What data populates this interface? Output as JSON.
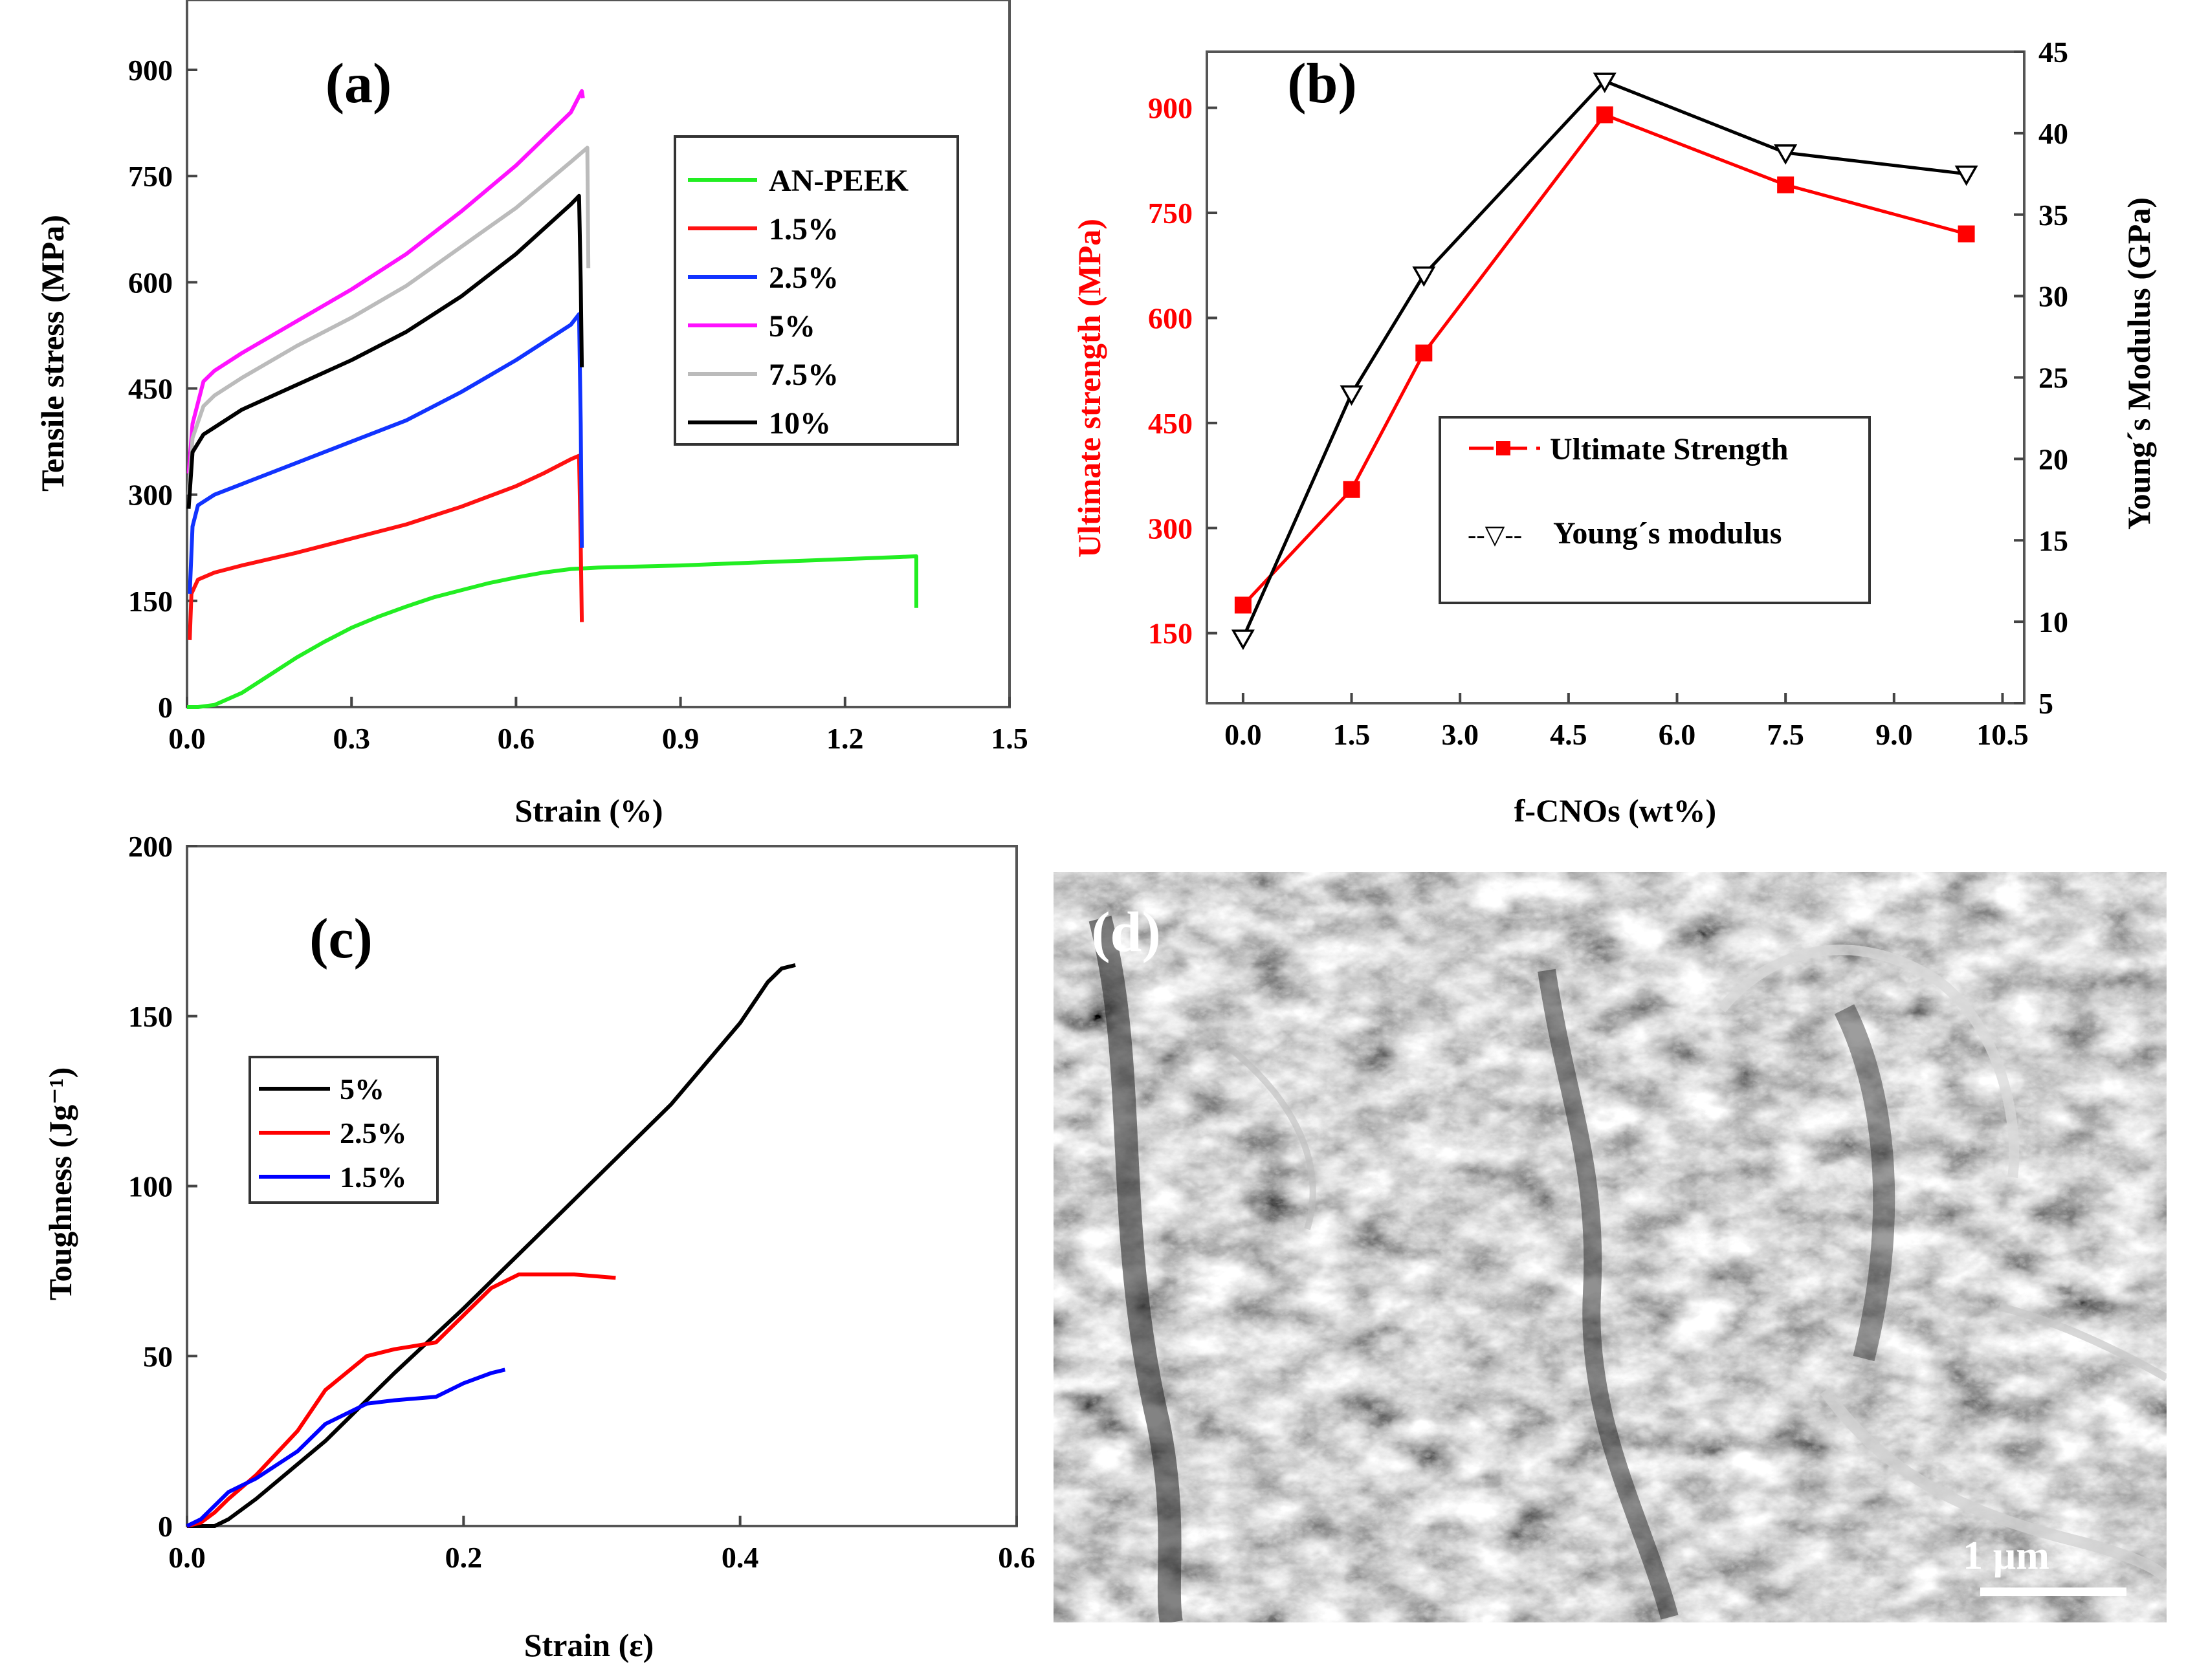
{
  "panels": {
    "a": {
      "label": "(a)"
    },
    "b": {
      "label": "(b)"
    },
    "c": {
      "label": "(c)"
    },
    "d": {
      "label": "(d)",
      "scale_bar": "1 µm"
    }
  },
  "chart_data": [
    {
      "id": "a",
      "type": "line",
      "xlabel": "Strain (%)",
      "ylabel": "Tensile stress (MPa)",
      "xlim": [
        0,
        1.5
      ],
      "ylim": [
        0,
        900
      ],
      "xticks": [
        "0.0",
        "0.3",
        "0.6",
        "0.9",
        "1.2",
        "1.5"
      ],
      "yticks": [
        "0",
        "150",
        "300",
        "450",
        "600",
        "750",
        "900"
      ],
      "legend_position": "top-right",
      "series": [
        {
          "name": "AN-PEEK",
          "color": "#22ee22",
          "points": [
            [
              0.0,
              0
            ],
            [
              0.02,
              0
            ],
            [
              0.05,
              3
            ],
            [
              0.1,
              20
            ],
            [
              0.15,
              45
            ],
            [
              0.2,
              70
            ],
            [
              0.25,
              92
            ],
            [
              0.3,
              112
            ],
            [
              0.35,
              128
            ],
            [
              0.4,
              142
            ],
            [
              0.45,
              155
            ],
            [
              0.5,
              165
            ],
            [
              0.55,
              175
            ],
            [
              0.6,
              183
            ],
            [
              0.65,
              190
            ],
            [
              0.7,
              195
            ],
            [
              0.75,
              197
            ],
            [
              0.8,
              198
            ],
            [
              0.9,
              200
            ],
            [
              1.0,
              203
            ],
            [
              1.1,
              206
            ],
            [
              1.2,
              209
            ],
            [
              1.3,
              212
            ],
            [
              1.33,
              213
            ],
            [
              1.33,
              140
            ]
          ]
        },
        {
          "name": "1.5%",
          "color": "#ff1111",
          "points": [
            [
              0.005,
              95
            ],
            [
              0.008,
              160
            ],
            [
              0.02,
              180
            ],
            [
              0.05,
              190
            ],
            [
              0.1,
              200
            ],
            [
              0.2,
              218
            ],
            [
              0.3,
              238
            ],
            [
              0.4,
              258
            ],
            [
              0.5,
              283
            ],
            [
              0.6,
              312
            ],
            [
              0.65,
              330
            ],
            [
              0.7,
              350
            ],
            [
              0.715,
              355
            ],
            [
              0.718,
              230
            ],
            [
              0.72,
              120
            ]
          ]
        },
        {
          "name": "2.5%",
          "color": "#1133ff",
          "points": [
            [
              0.005,
              160
            ],
            [
              0.01,
              255
            ],
            [
              0.02,
              285
            ],
            [
              0.05,
              300
            ],
            [
              0.1,
              315
            ],
            [
              0.2,
              345
            ],
            [
              0.3,
              375
            ],
            [
              0.4,
              405
            ],
            [
              0.5,
              445
            ],
            [
              0.6,
              490
            ],
            [
              0.7,
              540
            ],
            [
              0.715,
              555
            ],
            [
              0.718,
              400
            ],
            [
              0.72,
              225
            ]
          ]
        },
        {
          "name": "5%",
          "color": "#ff11ff",
          "points": [
            [
              0.003,
              330
            ],
            [
              0.01,
              400
            ],
            [
              0.03,
              460
            ],
            [
              0.05,
              475
            ],
            [
              0.1,
              500
            ],
            [
              0.2,
              545
            ],
            [
              0.3,
              590
            ],
            [
              0.4,
              640
            ],
            [
              0.5,
              700
            ],
            [
              0.6,
              765
            ],
            [
              0.7,
              840
            ],
            [
              0.72,
              870
            ],
            [
              0.722,
              860
            ]
          ]
        },
        {
          "name": "7.5%",
          "color": "#bbbbbb",
          "points": [
            [
              0.003,
              300
            ],
            [
              0.01,
              380
            ],
            [
              0.03,
              425
            ],
            [
              0.05,
              440
            ],
            [
              0.1,
              465
            ],
            [
              0.2,
              510
            ],
            [
              0.3,
              550
            ],
            [
              0.4,
              595
            ],
            [
              0.5,
              650
            ],
            [
              0.6,
              705
            ],
            [
              0.7,
              770
            ],
            [
              0.73,
              790
            ],
            [
              0.732,
              620
            ]
          ]
        },
        {
          "name": "10%",
          "color": "#000000",
          "points": [
            [
              0.003,
              280
            ],
            [
              0.01,
              360
            ],
            [
              0.03,
              385
            ],
            [
              0.05,
              395
            ],
            [
              0.1,
              420
            ],
            [
              0.2,
              455
            ],
            [
              0.3,
              490
            ],
            [
              0.4,
              530
            ],
            [
              0.5,
              580
            ],
            [
              0.6,
              640
            ],
            [
              0.7,
              710
            ],
            [
              0.715,
              722
            ],
            [
              0.718,
              600
            ],
            [
              0.72,
              480
            ]
          ]
        }
      ]
    },
    {
      "id": "b",
      "type": "line",
      "xlabel": "f-CNOs (wt%)",
      "ylabel_left": "Ultimate strength (MPa)",
      "ylabel_right": "Young´s Modulus (GPa)",
      "xlim": [
        -0.5,
        10.8
      ],
      "ylim_left": [
        50,
        980
      ],
      "ylim_right": [
        5,
        45
      ],
      "xticks": [
        "0.0",
        "1.5",
        "3.0",
        "4.5",
        "6.0",
        "7.5",
        "9.0",
        "10.5"
      ],
      "yticks_left": [
        "150",
        "300",
        "450",
        "600",
        "750",
        "900"
      ],
      "yticks_right": [
        "5",
        "10",
        "15",
        "20",
        "25",
        "30",
        "35",
        "40",
        "45"
      ],
      "legend_position": "center-right",
      "series": [
        {
          "name": "Ultimate Strength",
          "legend_label": "Ultimate Strength",
          "legend_prefix": "",
          "axis": "left",
          "color": "#ff0000",
          "marker": "square",
          "x": [
            0,
            1.5,
            2.5,
            5,
            7.5,
            10
          ],
          "y": [
            190,
            355,
            550,
            890,
            790,
            720
          ]
        },
        {
          "name": "Young´s modulus",
          "legend_label": "Young´s modulus",
          "legend_prefix": "--▽--",
          "axis": "right",
          "color": "#000000",
          "marker": "triangle-down",
          "x": [
            0,
            1.5,
            2.5,
            5,
            7.5,
            10
          ],
          "y": [
            9,
            24,
            31.3,
            43.2,
            38.8,
            37.5
          ]
        }
      ]
    },
    {
      "id": "c",
      "type": "line",
      "xlabel": "Strain (ε)",
      "ylabel": "Toughness (Jg⁻¹)",
      "xlim": [
        0,
        0.6
      ],
      "ylim": [
        0,
        200
      ],
      "xticks": [
        "0.0",
        "0.2",
        "0.4",
        "0.6"
      ],
      "yticks": [
        "0",
        "50",
        "100",
        "150",
        "200"
      ],
      "legend_position": "top-left",
      "series": [
        {
          "name": "5%",
          "color": "#000000",
          "points": [
            [
              0.0,
              0
            ],
            [
              0.02,
              0
            ],
            [
              0.03,
              2
            ],
            [
              0.05,
              8
            ],
            [
              0.1,
              25
            ],
            [
              0.15,
              45
            ],
            [
              0.2,
              64
            ],
            [
              0.25,
              84
            ],
            [
              0.3,
              104
            ],
            [
              0.35,
              124
            ],
            [
              0.4,
              148
            ],
            [
              0.42,
              160
            ],
            [
              0.43,
              164
            ],
            [
              0.44,
              165
            ]
          ]
        },
        {
          "name": "2.5%",
          "color": "#ff0000",
          "points": [
            [
              0.0,
              0
            ],
            [
              0.01,
              1
            ],
            [
              0.02,
              4
            ],
            [
              0.03,
              8
            ],
            [
              0.05,
              15
            ],
            [
              0.08,
              28
            ],
            [
              0.1,
              40
            ],
            [
              0.13,
              50
            ],
            [
              0.15,
              52
            ],
            [
              0.18,
              54
            ],
            [
              0.2,
              62
            ],
            [
              0.22,
              70
            ],
            [
              0.24,
              74
            ],
            [
              0.25,
              74
            ],
            [
              0.28,
              74
            ],
            [
              0.31,
              73
            ]
          ]
        },
        {
          "name": "1.5%",
          "color": "#0000ff",
          "points": [
            [
              0.0,
              0
            ],
            [
              0.01,
              2
            ],
            [
              0.02,
              6
            ],
            [
              0.03,
              10
            ],
            [
              0.05,
              14
            ],
            [
              0.08,
              22
            ],
            [
              0.1,
              30
            ],
            [
              0.13,
              36
            ],
            [
              0.15,
              37
            ],
            [
              0.18,
              38
            ],
            [
              0.2,
              42
            ],
            [
              0.22,
              45
            ],
            [
              0.23,
              46
            ]
          ]
        }
      ]
    }
  ]
}
